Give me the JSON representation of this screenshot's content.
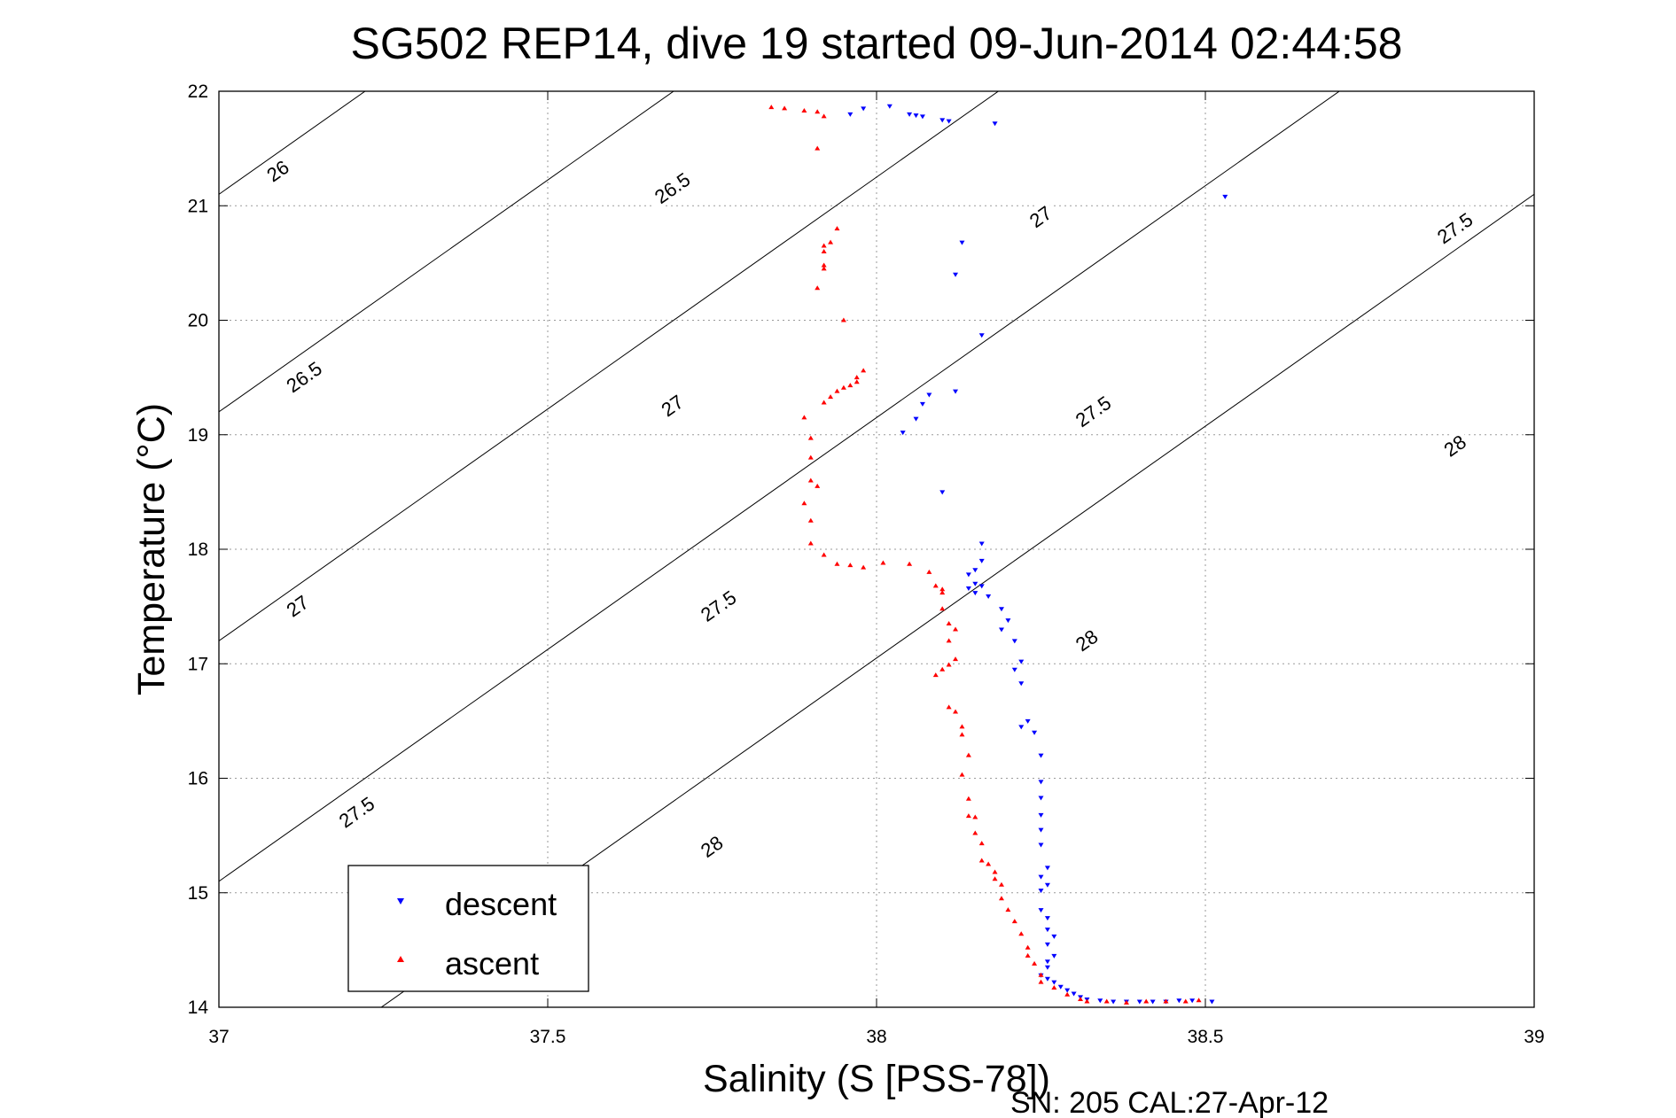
{
  "chart_data": {
    "type": "scatter",
    "title": "SG502 REP14, dive 19 started 09-Jun-2014 02:44:58",
    "xlabel": "Salinity (S [PSS-78])",
    "ylabel": "Temperature (°C)",
    "footer": "SN: 205  CAL:27-Apr-12",
    "xlim": [
      37,
      39
    ],
    "ylim": [
      14,
      22
    ],
    "xticks": [
      "37",
      "37.5",
      "38",
      "38.5",
      "39"
    ],
    "yticks": [
      "14",
      "15",
      "16",
      "17",
      "18",
      "19",
      "20",
      "21",
      "22"
    ],
    "grid": true,
    "legend_position": "bottom-left",
    "density_contours": [
      {
        "label": "26",
        "t_at_s37": 21.1,
        "slope": 4.05
      },
      {
        "label": "26.5",
        "t_at_s37": 19.2,
        "slope": 4.05
      },
      {
        "label": "27",
        "t_at_s37": 17.2,
        "slope": 4.05
      },
      {
        "label": "27.5",
        "t_at_s37": 15.1,
        "slope": 4.05
      },
      {
        "label": "28",
        "t_at_s37": 13.0,
        "slope": 4.05
      }
    ],
    "contour_label_positions": [
      {
        "text": "26",
        "s": 37.09,
        "t": 21.3
      },
      {
        "text": "26.5",
        "s": 37.69,
        "t": 21.15
      },
      {
        "text": "26.5",
        "s": 37.13,
        "t": 19.5
      },
      {
        "text": "27",
        "s": 38.25,
        "t": 20.9
      },
      {
        "text": "27",
        "s": 37.69,
        "t": 19.25
      },
      {
        "text": "27",
        "s": 37.12,
        "t": 17.5
      },
      {
        "text": "27.5",
        "s": 38.88,
        "t": 20.8
      },
      {
        "text": "27.5",
        "s": 38.33,
        "t": 19.2
      },
      {
        "text": "27.5",
        "s": 37.76,
        "t": 17.5
      },
      {
        "text": "27.5",
        "s": 37.21,
        "t": 15.7
      },
      {
        "text": "28",
        "s": 38.88,
        "t": 18.9
      },
      {
        "text": "28",
        "s": 38.32,
        "t": 17.2
      },
      {
        "text": "28",
        "s": 37.75,
        "t": 15.4
      }
    ],
    "series": [
      {
        "name": "descent",
        "color": "#0000ff",
        "marker": "triangle-down",
        "points": [
          [
            37.96,
            21.8
          ],
          [
            37.98,
            21.85
          ],
          [
            38.02,
            21.87
          ],
          [
            38.05,
            21.8
          ],
          [
            38.06,
            21.79
          ],
          [
            38.07,
            21.78
          ],
          [
            38.1,
            21.75
          ],
          [
            38.11,
            21.74
          ],
          [
            38.18,
            21.72
          ],
          [
            38.53,
            21.08
          ],
          [
            38.13,
            20.68
          ],
          [
            38.12,
            20.4
          ],
          [
            38.16,
            19.87
          ],
          [
            38.12,
            19.38
          ],
          [
            38.08,
            19.35
          ],
          [
            38.07,
            19.27
          ],
          [
            38.06,
            19.14
          ],
          [
            38.04,
            19.02
          ],
          [
            38.1,
            18.5
          ],
          [
            38.16,
            18.05
          ],
          [
            38.16,
            17.9
          ],
          [
            38.15,
            17.82
          ],
          [
            38.14,
            17.78
          ],
          [
            38.15,
            17.7
          ],
          [
            38.16,
            17.68
          ],
          [
            38.15,
            17.62
          ],
          [
            38.14,
            17.66
          ],
          [
            38.17,
            17.59
          ],
          [
            38.19,
            17.48
          ],
          [
            38.2,
            17.38
          ],
          [
            38.19,
            17.3
          ],
          [
            38.21,
            17.2
          ],
          [
            38.22,
            17.02
          ],
          [
            38.21,
            16.95
          ],
          [
            38.22,
            16.83
          ],
          [
            38.23,
            16.5
          ],
          [
            38.22,
            16.45
          ],
          [
            38.24,
            16.4
          ],
          [
            38.25,
            16.2
          ],
          [
            38.25,
            15.97
          ],
          [
            38.25,
            15.83
          ],
          [
            38.25,
            15.68
          ],
          [
            38.25,
            15.55
          ],
          [
            38.25,
            15.42
          ],
          [
            38.26,
            15.22
          ],
          [
            38.25,
            15.14
          ],
          [
            38.26,
            15.07
          ],
          [
            38.25,
            15.02
          ],
          [
            38.25,
            14.85
          ],
          [
            38.26,
            14.78
          ],
          [
            38.26,
            14.68
          ],
          [
            38.27,
            14.62
          ],
          [
            38.26,
            14.55
          ],
          [
            38.27,
            14.45
          ],
          [
            38.26,
            14.4
          ],
          [
            38.26,
            14.35
          ],
          [
            38.25,
            14.28
          ],
          [
            38.26,
            14.25
          ],
          [
            38.27,
            14.22
          ],
          [
            38.28,
            14.18
          ],
          [
            38.29,
            14.15
          ],
          [
            38.3,
            14.12
          ],
          [
            38.31,
            14.09
          ],
          [
            38.32,
            14.07
          ],
          [
            38.34,
            14.06
          ],
          [
            38.36,
            14.05
          ],
          [
            38.38,
            14.05
          ],
          [
            38.4,
            14.05
          ],
          [
            38.42,
            14.05
          ],
          [
            38.44,
            14.05
          ],
          [
            38.46,
            14.06
          ],
          [
            38.48,
            14.06
          ],
          [
            38.51,
            14.05
          ]
        ]
      },
      {
        "name": "ascent",
        "color": "#ff0000",
        "marker": "triangle-up",
        "points": [
          [
            37.84,
            21.86
          ],
          [
            37.86,
            21.85
          ],
          [
            37.89,
            21.83
          ],
          [
            37.91,
            21.82
          ],
          [
            37.92,
            21.78
          ],
          [
            37.91,
            21.5
          ],
          [
            37.94,
            20.8
          ],
          [
            37.92,
            20.65
          ],
          [
            37.93,
            20.68
          ],
          [
            37.92,
            20.6
          ],
          [
            37.92,
            20.48
          ],
          [
            37.92,
            20.45
          ],
          [
            37.91,
            20.28
          ],
          [
            37.95,
            20.0
          ],
          [
            37.98,
            19.56
          ],
          [
            37.97,
            19.5
          ],
          [
            37.97,
            19.46
          ],
          [
            37.96,
            19.43
          ],
          [
            37.95,
            19.41
          ],
          [
            37.94,
            19.38
          ],
          [
            37.93,
            19.33
          ],
          [
            37.92,
            19.28
          ],
          [
            37.89,
            19.15
          ],
          [
            37.9,
            18.97
          ],
          [
            37.9,
            18.8
          ],
          [
            37.9,
            18.6
          ],
          [
            37.91,
            18.55
          ],
          [
            37.89,
            18.4
          ],
          [
            37.9,
            18.25
          ],
          [
            37.9,
            18.05
          ],
          [
            37.92,
            17.95
          ],
          [
            37.94,
            17.87
          ],
          [
            37.96,
            17.86
          ],
          [
            37.98,
            17.84
          ],
          [
            38.01,
            17.88
          ],
          [
            38.05,
            17.87
          ],
          [
            38.08,
            17.8
          ],
          [
            38.09,
            17.68
          ],
          [
            38.1,
            17.65
          ],
          [
            38.1,
            17.62
          ],
          [
            38.1,
            17.48
          ],
          [
            38.11,
            17.35
          ],
          [
            38.12,
            17.3
          ],
          [
            38.11,
            17.2
          ],
          [
            38.12,
            17.04
          ],
          [
            38.11,
            16.99
          ],
          [
            38.1,
            16.95
          ],
          [
            38.09,
            16.9
          ],
          [
            38.11,
            16.62
          ],
          [
            38.12,
            16.58
          ],
          [
            38.13,
            16.45
          ],
          [
            38.13,
            16.38
          ],
          [
            38.14,
            16.2
          ],
          [
            38.13,
            16.03
          ],
          [
            38.14,
            15.82
          ],
          [
            38.14,
            15.67
          ],
          [
            38.15,
            15.66
          ],
          [
            38.15,
            15.52
          ],
          [
            38.16,
            15.43
          ],
          [
            38.16,
            15.28
          ],
          [
            38.17,
            15.25
          ],
          [
            38.18,
            15.18
          ],
          [
            38.18,
            15.12
          ],
          [
            38.19,
            15.07
          ],
          [
            38.19,
            14.95
          ],
          [
            38.2,
            14.85
          ],
          [
            38.21,
            14.75
          ],
          [
            38.22,
            14.64
          ],
          [
            38.23,
            14.52
          ],
          [
            38.23,
            14.45
          ],
          [
            38.24,
            14.38
          ],
          [
            38.25,
            14.28
          ],
          [
            38.25,
            14.22
          ],
          [
            38.27,
            14.17
          ],
          [
            38.29,
            14.11
          ],
          [
            38.31,
            14.07
          ],
          [
            38.32,
            14.05
          ],
          [
            38.35,
            14.05
          ],
          [
            38.38,
            14.04
          ],
          [
            38.41,
            14.05
          ],
          [
            38.44,
            14.05
          ],
          [
            38.47,
            14.05
          ],
          [
            38.49,
            14.06
          ]
        ]
      }
    ]
  }
}
